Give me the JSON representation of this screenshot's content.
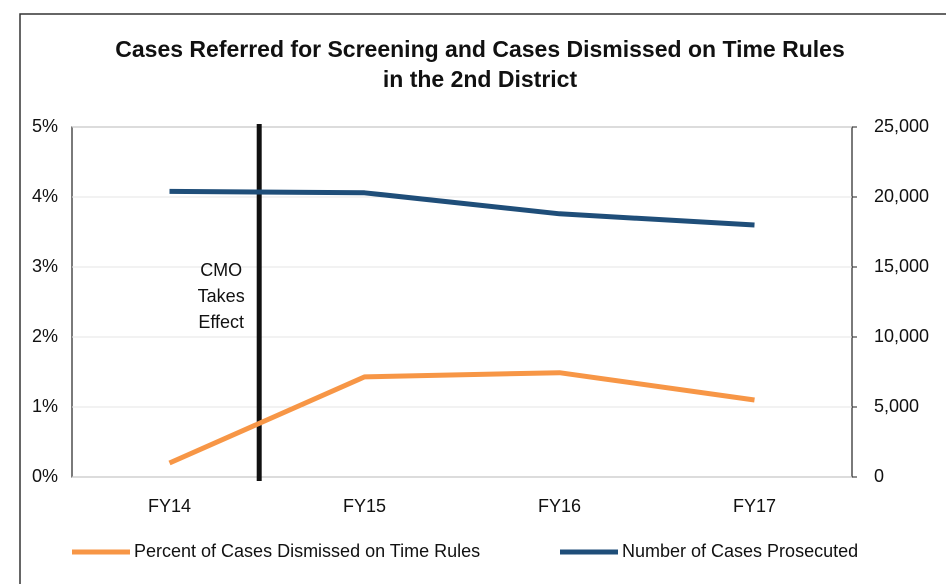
{
  "chart_data": {
    "type": "line",
    "title": "Cases Referred for Screening and Cases Dismissed on Time Rules in the 2nd District",
    "categories": [
      "FY14",
      "FY15",
      "FY16",
      "FY17"
    ],
    "series": [
      {
        "name": "Percent of Cases Dismissed on Time Rules",
        "color": "#f79646",
        "values": [
          0.2,
          1.43,
          1.49,
          1.1
        ]
      },
      {
        "name": "Number of Cases Prosecuted",
        "color": "#1f4e79",
        "axis": "y2",
        "values": [
          20400,
          20300,
          18800,
          18000
        ]
      }
    ],
    "ylim": [
      0,
      5
    ],
    "yticks": [
      {
        "value": 0,
        "label": "0%"
      },
      {
        "value": 1,
        "label": "1%"
      },
      {
        "value": 2,
        "label": "2%"
      },
      {
        "value": 3,
        "label": "3%"
      },
      {
        "value": 4,
        "label": "4%"
      },
      {
        "value": 5,
        "label": "5%"
      }
    ],
    "y2lim": [
      0,
      25000
    ],
    "y2ticks": [
      0,
      {
        "value": 5000,
        "label": "5,000"
      },
      {
        "value": 10000,
        "label": "10,000"
      },
      {
        "value": 15000,
        "label": "15,000"
      },
      {
        "value": 20000,
        "label": "20,000"
      },
      {
        "value": 25000,
        "label": "25,000"
      }
    ],
    "annotation": [
      "CMO",
      "Takes",
      "Effect"
    ],
    "grid": true,
    "legend": "bottom"
  }
}
